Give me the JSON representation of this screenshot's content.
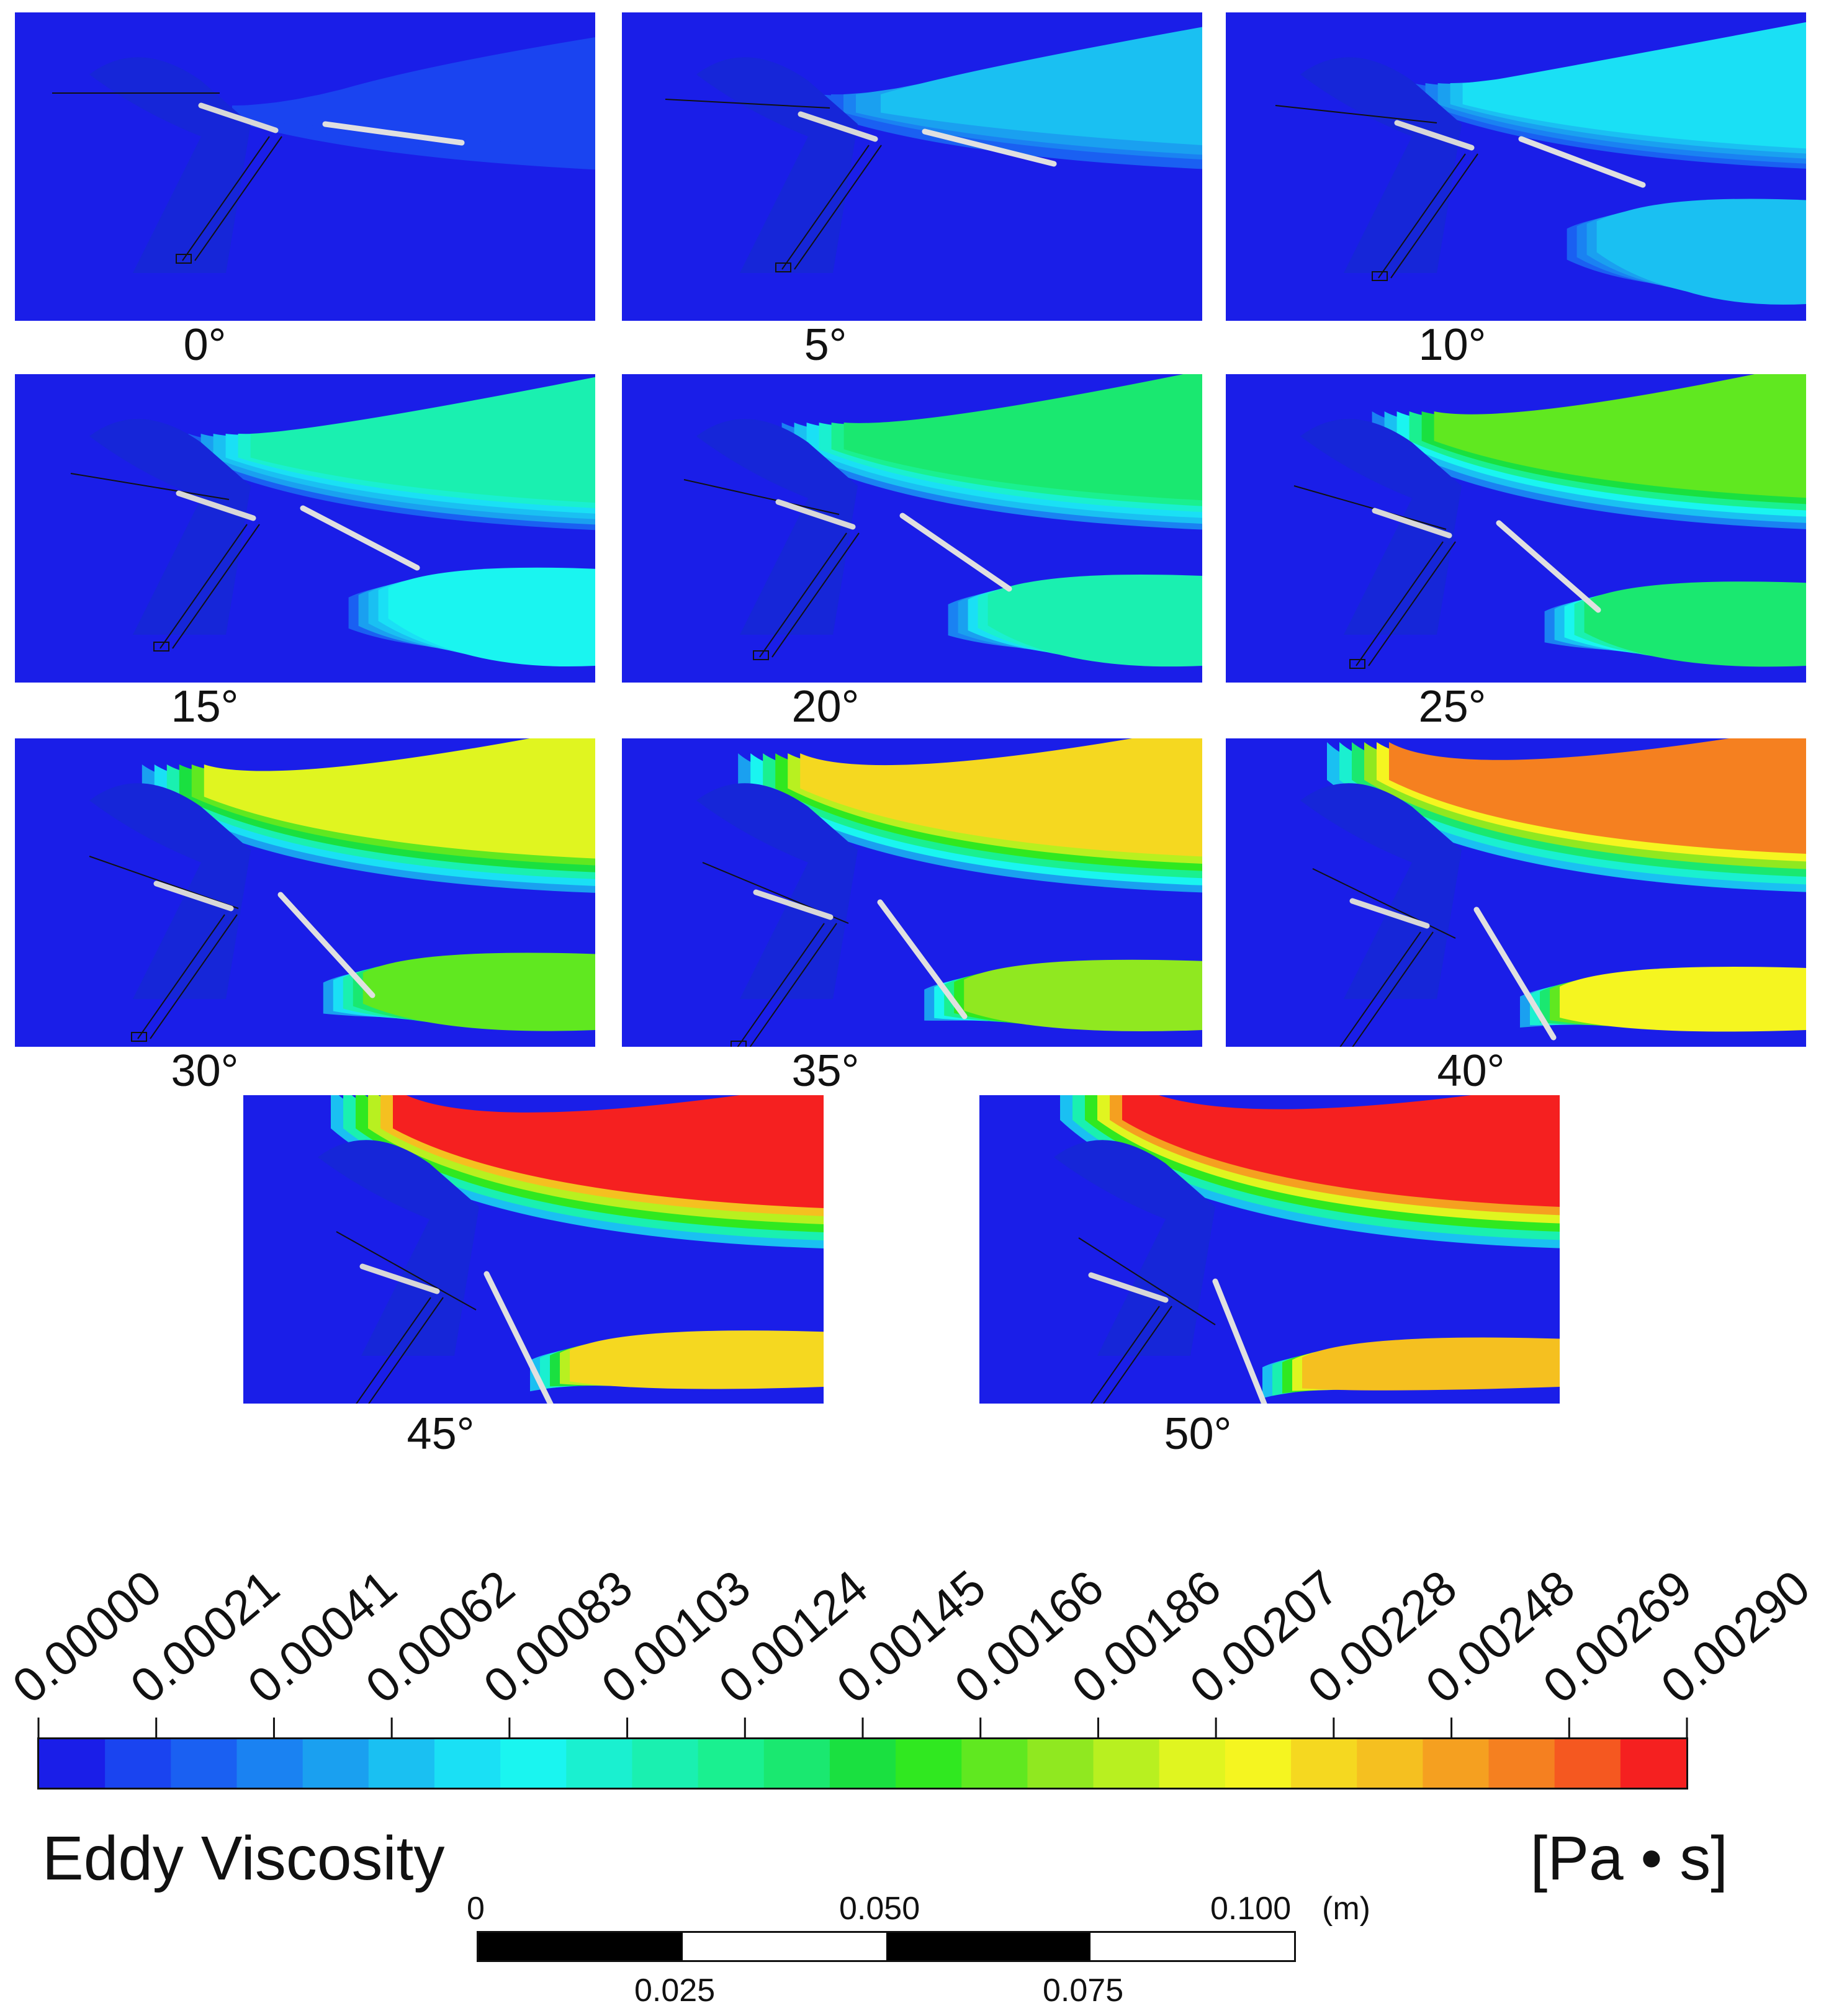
{
  "panels": [
    {
      "label": "0°",
      "intensity": 0.0
    },
    {
      "label": "5°",
      "intensity": 0.15
    },
    {
      "label": "10°",
      "intensity": 0.22
    },
    {
      "label": "15°",
      "intensity": 0.32
    },
    {
      "label": "20°",
      "intensity": 0.42
    },
    {
      "label": "25°",
      "intensity": 0.52
    },
    {
      "label": "30°",
      "intensity": 0.66
    },
    {
      "label": "35°",
      "intensity": 0.74
    },
    {
      "label": "40°",
      "intensity": 0.85
    },
    {
      "label": "45°",
      "intensity": 0.95
    },
    {
      "label": "50°",
      "intensity": 1.0
    }
  ],
  "legend": {
    "title": "Eddy Viscosity",
    "unit": "[Pa • s]",
    "ticks": [
      "0.00000",
      "0.00021",
      "0.00041",
      "0.00062",
      "0.00083",
      "0.00103",
      "0.00124",
      "0.00145",
      "0.00166",
      "0.00186",
      "0.00207",
      "0.00228",
      "0.00248",
      "0.00269",
      "0.00290"
    ],
    "colors": [
      "#1a1ee8",
      "#1a44f0",
      "#1a60f2",
      "#1a82f2",
      "#1aa0f0",
      "#1ac0f2",
      "#1ae0f5",
      "#1af5f0",
      "#1af0d0",
      "#1af0b0",
      "#1af090",
      "#1ae870",
      "#1ae040",
      "#30e820",
      "#60e820",
      "#90e820",
      "#b8f020",
      "#e0f520",
      "#f5f520",
      "#f5d820",
      "#f5c020",
      "#f5a020",
      "#f58020",
      "#f55820",
      "#f52020"
    ]
  },
  "scale_bar": {
    "top_labels": [
      "0",
      "0.050",
      "0.100",
      "(m)"
    ],
    "bottom_labels": [
      "0.025",
      "0.075"
    ]
  }
}
